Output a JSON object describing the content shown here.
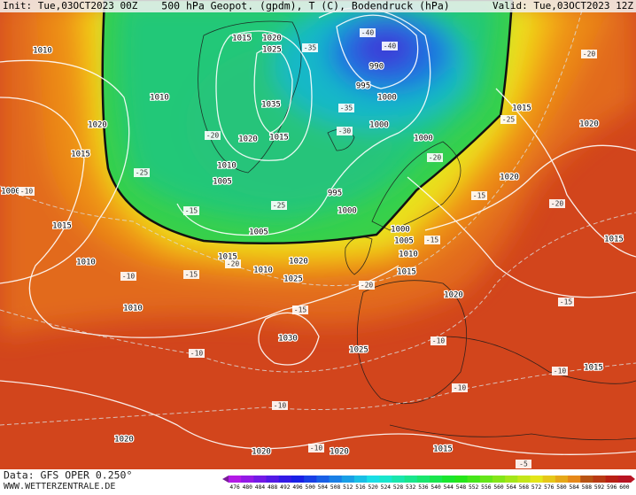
{
  "header": {
    "init": "Init: Tue,03OCT2023 00Z",
    "title": "500 hPa Geopot. (gpdm), T (C), Bodendruck (hPa)",
    "valid": "Valid: Tue,03OCT2023 12Z"
  },
  "footer": {
    "source": "Data: GFS OPER 0.250°",
    "website": "WWW.WETTERZENTRALE.DE"
  },
  "colorbar": {
    "ticks": [
      476,
      480,
      484,
      488,
      492,
      496,
      500,
      504,
      508,
      512,
      516,
      520,
      524,
      528,
      532,
      536,
      540,
      544,
      548,
      552,
      556,
      560,
      564,
      568,
      572,
      576,
      580,
      584,
      588,
      592,
      596,
      600
    ]
  },
  "isobar_labels": [
    1015,
    1020,
    1025,
    1035,
    1020,
    1015,
    1010,
    1005,
    995,
    1000,
    1000,
    1000,
    1000,
    995,
    990,
    1005,
    1010,
    1015,
    1020,
    1025,
    1000,
    1005,
    1010,
    1015,
    1015,
    1020,
    1020,
    1015,
    1020,
    1010,
    1010,
    1015,
    1020,
    1015,
    1010,
    1010,
    1030,
    1025,
    1020,
    1020,
    1020,
    1015,
    1015,
    1000
  ],
  "temperature_labels": [
    -35,
    -40,
    -40,
    -35,
    -30,
    -25,
    -20,
    -25,
    -15,
    -20,
    -25,
    -20,
    -15,
    -20,
    -15,
    -20,
    -15,
    -10,
    -10,
    -15,
    -20,
    -15,
    -10,
    -10,
    -10,
    -10,
    -10,
    -10,
    -5
  ]
}
